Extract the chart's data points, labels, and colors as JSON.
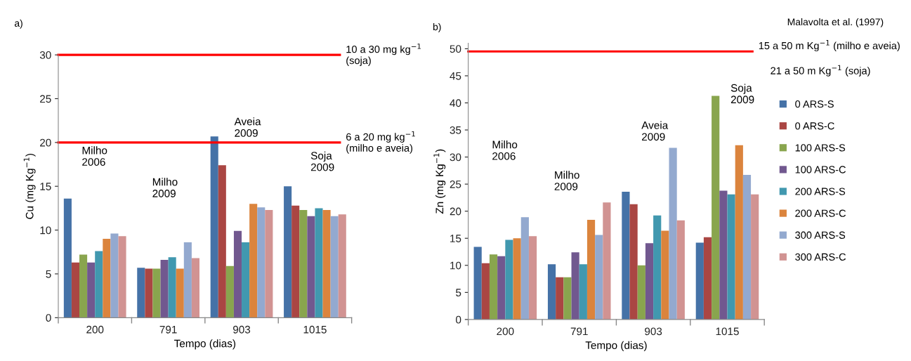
{
  "chart_data": [
    {
      "type": "bar",
      "xlabel": "Tempo (dias)",
      "ylabel": "Cu (mg Kg$^{−1}$)",
      "categories": [
        "200",
        "791",
        "903",
        "1015"
      ],
      "ylim": [
        0,
        30
      ],
      "yticks": [
        0,
        5,
        10,
        15,
        20,
        25,
        30
      ],
      "grid": false,
      "legend": false,
      "series": [
        {
          "color": "#4572a7",
          "values": [
            13.6,
            5.7,
            20.7,
            15.0
          ]
        },
        {
          "color": "#aa4643",
          "values": [
            6.3,
            5.6,
            17.4,
            12.8
          ]
        },
        {
          "color": "#89a54e",
          "values": [
            7.2,
            5.6,
            5.9,
            12.3
          ]
        },
        {
          "color": "#71588f",
          "values": [
            6.3,
            6.6,
            9.9,
            11.6
          ]
        },
        {
          "color": "#4198af",
          "values": [
            7.6,
            6.9,
            8.6,
            12.5
          ]
        },
        {
          "color": "#db843d",
          "values": [
            9.0,
            5.6,
            13.0,
            12.3
          ]
        },
        {
          "color": "#93a9cf",
          "values": [
            9.6,
            8.6,
            12.6,
            11.6
          ]
        },
        {
          "color": "#d19392",
          "values": [
            9.3,
            6.8,
            12.3,
            11.8
          ]
        }
      ],
      "ref_lines": [
        {
          "axis": "y",
          "value": 30,
          "label": "10 a 30 mg kg$^{−1}$\n(soja)",
          "color": "#ff0000"
        },
        {
          "axis": "y",
          "value": 20,
          "label": "6 a 20 mg kg$^{−1}$\n(milho e aveia)",
          "color": "#ff0000"
        }
      ],
      "annotations": [
        "a)",
        "Milho\n2006",
        "Milho\n2009",
        "Aveia\n2009",
        "Soja\n2009"
      ]
    },
    {
      "type": "bar",
      "xlabel": "Tempo (dias)",
      "ylabel": "Zn (mg Kg$^{−1}$)",
      "categories": [
        "200",
        "791",
        "903",
        "1015"
      ],
      "ylim": [
        0,
        51
      ],
      "yticks": [
        0,
        5,
        10,
        15,
        20,
        25,
        30,
        35,
        40,
        45,
        50
      ],
      "grid": false,
      "legend": "right",
      "series": [
        {
          "name": "0 ARS-S",
          "color": "#4572a7",
          "values": [
            13.4,
            10.2,
            23.6,
            14.2
          ]
        },
        {
          "name": "0 ARS-C",
          "color": "#aa4643",
          "values": [
            10.4,
            7.8,
            21.3,
            15.2
          ]
        },
        {
          "name": "100 ARS-S",
          "color": "#89a54e",
          "values": [
            12.0,
            7.8,
            10.0,
            41.3
          ]
        },
        {
          "name": "100 ARS-C",
          "color": "#71588f",
          "values": [
            11.7,
            12.4,
            14.1,
            23.8
          ]
        },
        {
          "name": "200 ARS-S",
          "color": "#4198af",
          "values": [
            14.7,
            10.2,
            19.2,
            23.1
          ]
        },
        {
          "name": "200 ARS-C",
          "color": "#db843d",
          "values": [
            15.0,
            18.4,
            16.4,
            32.2
          ]
        },
        {
          "name": "300 ARS-S",
          "color": "#93a9cf",
          "values": [
            18.9,
            15.6,
            31.7,
            26.7
          ]
        },
        {
          "name": "300 ARS-C",
          "color": "#d19392",
          "values": [
            15.4,
            21.6,
            18.3,
            23.1
          ]
        }
      ],
      "ref_lines": [
        {
          "axis": "y",
          "value": 49.5,
          "label": "15 a 50 m Kg$^{−1}$ (milho e aveia)",
          "color": "#ff0000"
        }
      ],
      "annotations": [
        "b)",
        "Malavolta et al. (1997)",
        "21 a 50 m Kg$^{−1}$ (soja)",
        "Milho\n2006",
        "Milho\n2009",
        "Aveia\n2009",
        "Soja\n2009"
      ]
    }
  ]
}
